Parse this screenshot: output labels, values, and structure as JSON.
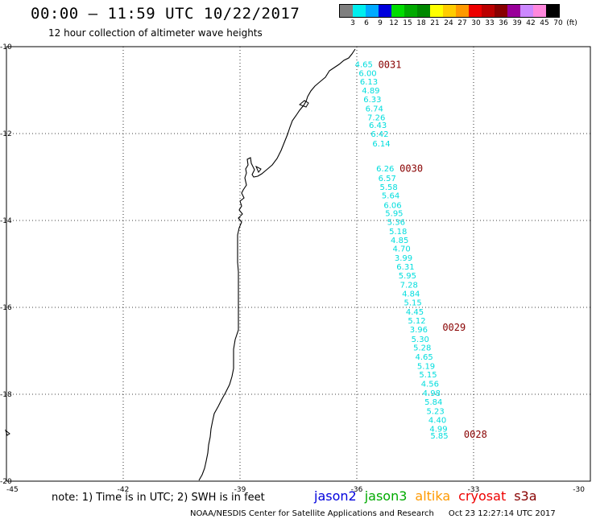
{
  "header": {
    "title": "00:00 – 11:59 UTC 10/22/2017",
    "subtitle": "12 hour collection of altimeter wave heights"
  },
  "color_legend": {
    "colors": [
      "#7f7f7f",
      "#00eeee",
      "#00aaff",
      "#0000dd",
      "#00dd00",
      "#00aa00",
      "#008800",
      "#ffff00",
      "#ffcc00",
      "#ff9900",
      "#ee0000",
      "#bb0000",
      "#880000",
      "#990099",
      "#cc88ff",
      "#ff88dd",
      "#000000"
    ],
    "labels": [
      "3",
      "6",
      "9",
      "12",
      "15",
      "18",
      "21",
      "24",
      "27",
      "30",
      "33",
      "36",
      "39",
      "42",
      "45",
      "70",
      "(ft)"
    ]
  },
  "map": {
    "lat_labels": [
      "-10",
      "-12",
      "-14",
      "-16",
      "-18",
      "-20"
    ],
    "lon_labels": [
      "-45",
      "-42",
      "-39",
      "-36",
      "-33",
      "-30"
    ],
    "grid_lat": [
      -10,
      -12,
      -14,
      -16,
      -18
    ],
    "grid_lon": [
      -42,
      -39,
      -36,
      -33
    ],
    "lat_range": [
      -20,
      -10
    ],
    "lon_range": [
      -45,
      -30
    ]
  },
  "track": {
    "color": "#00dddd",
    "observations": [
      {
        "lon": -36.05,
        "lat": -10.4,
        "swh": "4.65"
      },
      {
        "lon": -35.95,
        "lat": -10.6,
        "swh": "6.00"
      },
      {
        "lon": -35.92,
        "lat": -10.8,
        "swh": "6.13"
      },
      {
        "lon": -35.87,
        "lat": -11.0,
        "swh": "4.89"
      },
      {
        "lon": -35.83,
        "lat": -11.2,
        "swh": "6.33"
      },
      {
        "lon": -35.78,
        "lat": -11.42,
        "swh": "6.74"
      },
      {
        "lon": -35.73,
        "lat": -11.62,
        "swh": "7.26"
      },
      {
        "lon": -35.69,
        "lat": -11.8,
        "swh": "6.43"
      },
      {
        "lon": -35.64,
        "lat": -12.0,
        "swh": "6.42"
      },
      {
        "lon": -35.6,
        "lat": -12.22,
        "swh": "6.14"
      },
      {
        "lon": -35.5,
        "lat": -12.8,
        "swh": "6.26"
      },
      {
        "lon": -35.45,
        "lat": -13.02,
        "swh": "6.57"
      },
      {
        "lon": -35.41,
        "lat": -13.22,
        "swh": "5.58"
      },
      {
        "lon": -35.36,
        "lat": -13.42,
        "swh": "5.64"
      },
      {
        "lon": -35.31,
        "lat": -13.64,
        "swh": "6.06"
      },
      {
        "lon": -35.27,
        "lat": -13.82,
        "swh": "5.95"
      },
      {
        "lon": -35.22,
        "lat": -14.03,
        "swh": "5.36"
      },
      {
        "lon": -35.17,
        "lat": -14.24,
        "swh": "5.18"
      },
      {
        "lon": -35.13,
        "lat": -14.44,
        "swh": "4.85"
      },
      {
        "lon": -35.08,
        "lat": -14.64,
        "swh": "4.70"
      },
      {
        "lon": -35.03,
        "lat": -14.85,
        "swh": "3.99"
      },
      {
        "lon": -34.98,
        "lat": -15.06,
        "swh": "6.31"
      },
      {
        "lon": -34.93,
        "lat": -15.26,
        "swh": "5.95"
      },
      {
        "lon": -34.89,
        "lat": -15.47,
        "swh": "7.28"
      },
      {
        "lon": -34.84,
        "lat": -15.68,
        "swh": "4.84"
      },
      {
        "lon": -34.79,
        "lat": -15.88,
        "swh": "5.15"
      },
      {
        "lon": -34.74,
        "lat": -16.09,
        "swh": "4.45"
      },
      {
        "lon": -34.69,
        "lat": -16.3,
        "swh": "5.12"
      },
      {
        "lon": -34.64,
        "lat": -16.5,
        "swh": "3.96"
      },
      {
        "lon": -34.6,
        "lat": -16.72,
        "swh": "5.30"
      },
      {
        "lon": -34.55,
        "lat": -16.92,
        "swh": "5.28"
      },
      {
        "lon": -34.5,
        "lat": -17.13,
        "swh": "4.65"
      },
      {
        "lon": -34.45,
        "lat": -17.34,
        "swh": "5.19"
      },
      {
        "lon": -34.4,
        "lat": -17.54,
        "swh": "5.15"
      },
      {
        "lon": -34.35,
        "lat": -17.75,
        "swh": "4.56"
      },
      {
        "lon": -34.31,
        "lat": -17.96,
        "swh": "4.98"
      },
      {
        "lon": -34.26,
        "lat": -18.17,
        "swh": "5.84"
      },
      {
        "lon": -34.21,
        "lat": -18.38,
        "swh": "5.23"
      },
      {
        "lon": -34.16,
        "lat": -18.58,
        "swh": "4.40"
      },
      {
        "lon": -34.13,
        "lat": -18.79,
        "swh": "4.99"
      },
      {
        "lon": -34.11,
        "lat": -18.94,
        "swh": "5.85"
      }
    ],
    "time_markers": [
      {
        "lon": -35.45,
        "lat": -10.42,
        "text": "0031"
      },
      {
        "lon": -34.9,
        "lat": -12.81,
        "text": "0030"
      },
      {
        "lon": -33.8,
        "lat": -16.46,
        "text": "0029"
      },
      {
        "lon": -33.25,
        "lat": -18.93,
        "text": "0028"
      }
    ],
    "marker_color": "#880000"
  },
  "footer": {
    "note": "note: 1) Time is in UTC; 2) SWH is in feet",
    "satellites": [
      {
        "name": "jason2",
        "color": "#0000dd"
      },
      {
        "name": "jason3",
        "color": "#00aa00"
      },
      {
        "name": "altika",
        "color": "#ff9900"
      },
      {
        "name": "cryosat",
        "color": "#ee0000"
      },
      {
        "name": "s3a",
        "color": "#880000"
      }
    ],
    "credit": "NOAA/NESDIS Center for Satellite Applications and Research",
    "generated": "Oct 23 12:27:14 UTC 2017"
  }
}
